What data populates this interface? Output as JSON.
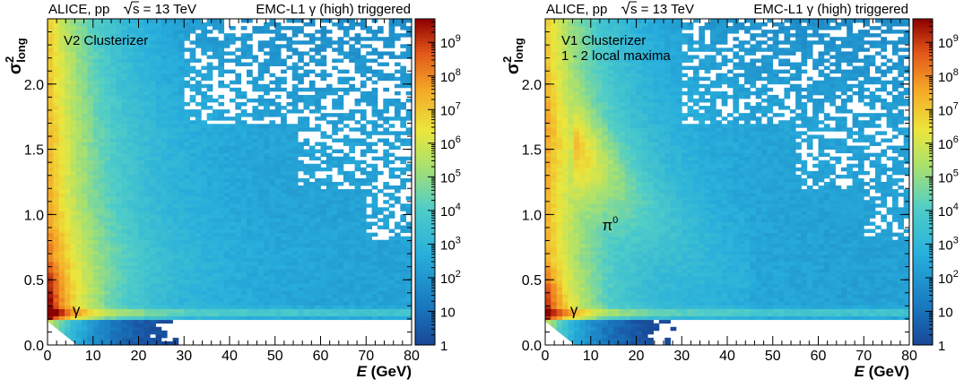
{
  "chart_data": [
    {
      "type": "heatmap",
      "header": {
        "left": "ALICE, pp",
        "energy": "s = 13 TeV",
        "trigger": "EMC-L1 γ (high) triggered"
      },
      "legend_text": [
        "V2 Clusterizer"
      ],
      "xlabel": "E (GeV)",
      "xlabel_italic": "E",
      "xlabel_unit": " (GeV)",
      "ylabel_base": "σ",
      "ylabel_sup": "2",
      "ylabel_sub": "long",
      "xlim": [
        0,
        80
      ],
      "ylim": [
        0,
        2.5
      ],
      "xticks": [
        0,
        10,
        20,
        30,
        40,
        50,
        60,
        70,
        80
      ],
      "xtick_labels": [
        "0",
        "10",
        "20",
        "30",
        "40",
        "50",
        "60",
        "70",
        "80"
      ],
      "yticks": [
        0,
        0.5,
        1.0,
        1.5,
        2.0
      ],
      "ytick_labels": [
        "0.0",
        "0.5",
        "1.0",
        "1.5",
        "2.0"
      ],
      "z_log": true,
      "zlim": [
        1,
        5000000000
      ],
      "z_ticks": [
        1,
        10,
        100,
        1000,
        10000,
        100000,
        1000000,
        10000000,
        100000000,
        1000000000
      ],
      "z_tick_labels": [
        {
          "base": "1",
          "exp": ""
        },
        {
          "base": "10",
          "exp": ""
        },
        {
          "base": "10",
          "exp": "2"
        },
        {
          "base": "10",
          "exp": "3"
        },
        {
          "base": "10",
          "exp": "4"
        },
        {
          "base": "10",
          "exp": "5"
        },
        {
          "base": "10",
          "exp": "6"
        },
        {
          "base": "10",
          "exp": "7"
        },
        {
          "base": "10",
          "exp": "8"
        },
        {
          "base": "10",
          "exp": "9"
        }
      ],
      "annotations": [
        {
          "text": "γ",
          "x": 5.5,
          "y": 0.23
        }
      ],
      "pi0_band": false
    },
    {
      "type": "heatmap",
      "header": {
        "left": "ALICE, pp",
        "energy": "s = 13 TeV",
        "trigger": "EMC-L1 γ (high) triggered"
      },
      "legend_text": [
        "V1 Clusterizer",
        "1 - 2 local maxima"
      ],
      "xlabel": "E (GeV)",
      "xlabel_italic": "E",
      "xlabel_unit": " (GeV)",
      "ylabel_base": "σ",
      "ylabel_sup": "2",
      "ylabel_sub": "long",
      "xlim": [
        0,
        80
      ],
      "ylim": [
        0,
        2.5
      ],
      "xticks": [
        0,
        10,
        20,
        30,
        40,
        50,
        60,
        70,
        80
      ],
      "xtick_labels": [
        "0",
        "10",
        "20",
        "30",
        "40",
        "50",
        "60",
        "70",
        "80"
      ],
      "yticks": [
        0,
        0.5,
        1.0,
        1.5,
        2.0
      ],
      "ytick_labels": [
        "0.0",
        "0.5",
        "1.0",
        "1.5",
        "2.0"
      ],
      "z_log": true,
      "zlim": [
        1,
        5000000000
      ],
      "z_ticks": [
        1,
        10,
        100,
        1000,
        10000,
        100000,
        1000000,
        10000000,
        100000000,
        1000000000
      ],
      "z_tick_labels": [
        {
          "base": "1",
          "exp": ""
        },
        {
          "base": "10",
          "exp": ""
        },
        {
          "base": "10",
          "exp": "2"
        },
        {
          "base": "10",
          "exp": "3"
        },
        {
          "base": "10",
          "exp": "4"
        },
        {
          "base": "10",
          "exp": "5"
        },
        {
          "base": "10",
          "exp": "6"
        },
        {
          "base": "10",
          "exp": "7"
        },
        {
          "base": "10",
          "exp": "8"
        },
        {
          "base": "10",
          "exp": "9"
        }
      ],
      "annotations": [
        {
          "text": "γ",
          "x": 5.5,
          "y": 0.23
        },
        {
          "text": "π",
          "sup": "0",
          "x": 12.5,
          "y": 0.88
        }
      ],
      "pi0_band": true
    }
  ]
}
